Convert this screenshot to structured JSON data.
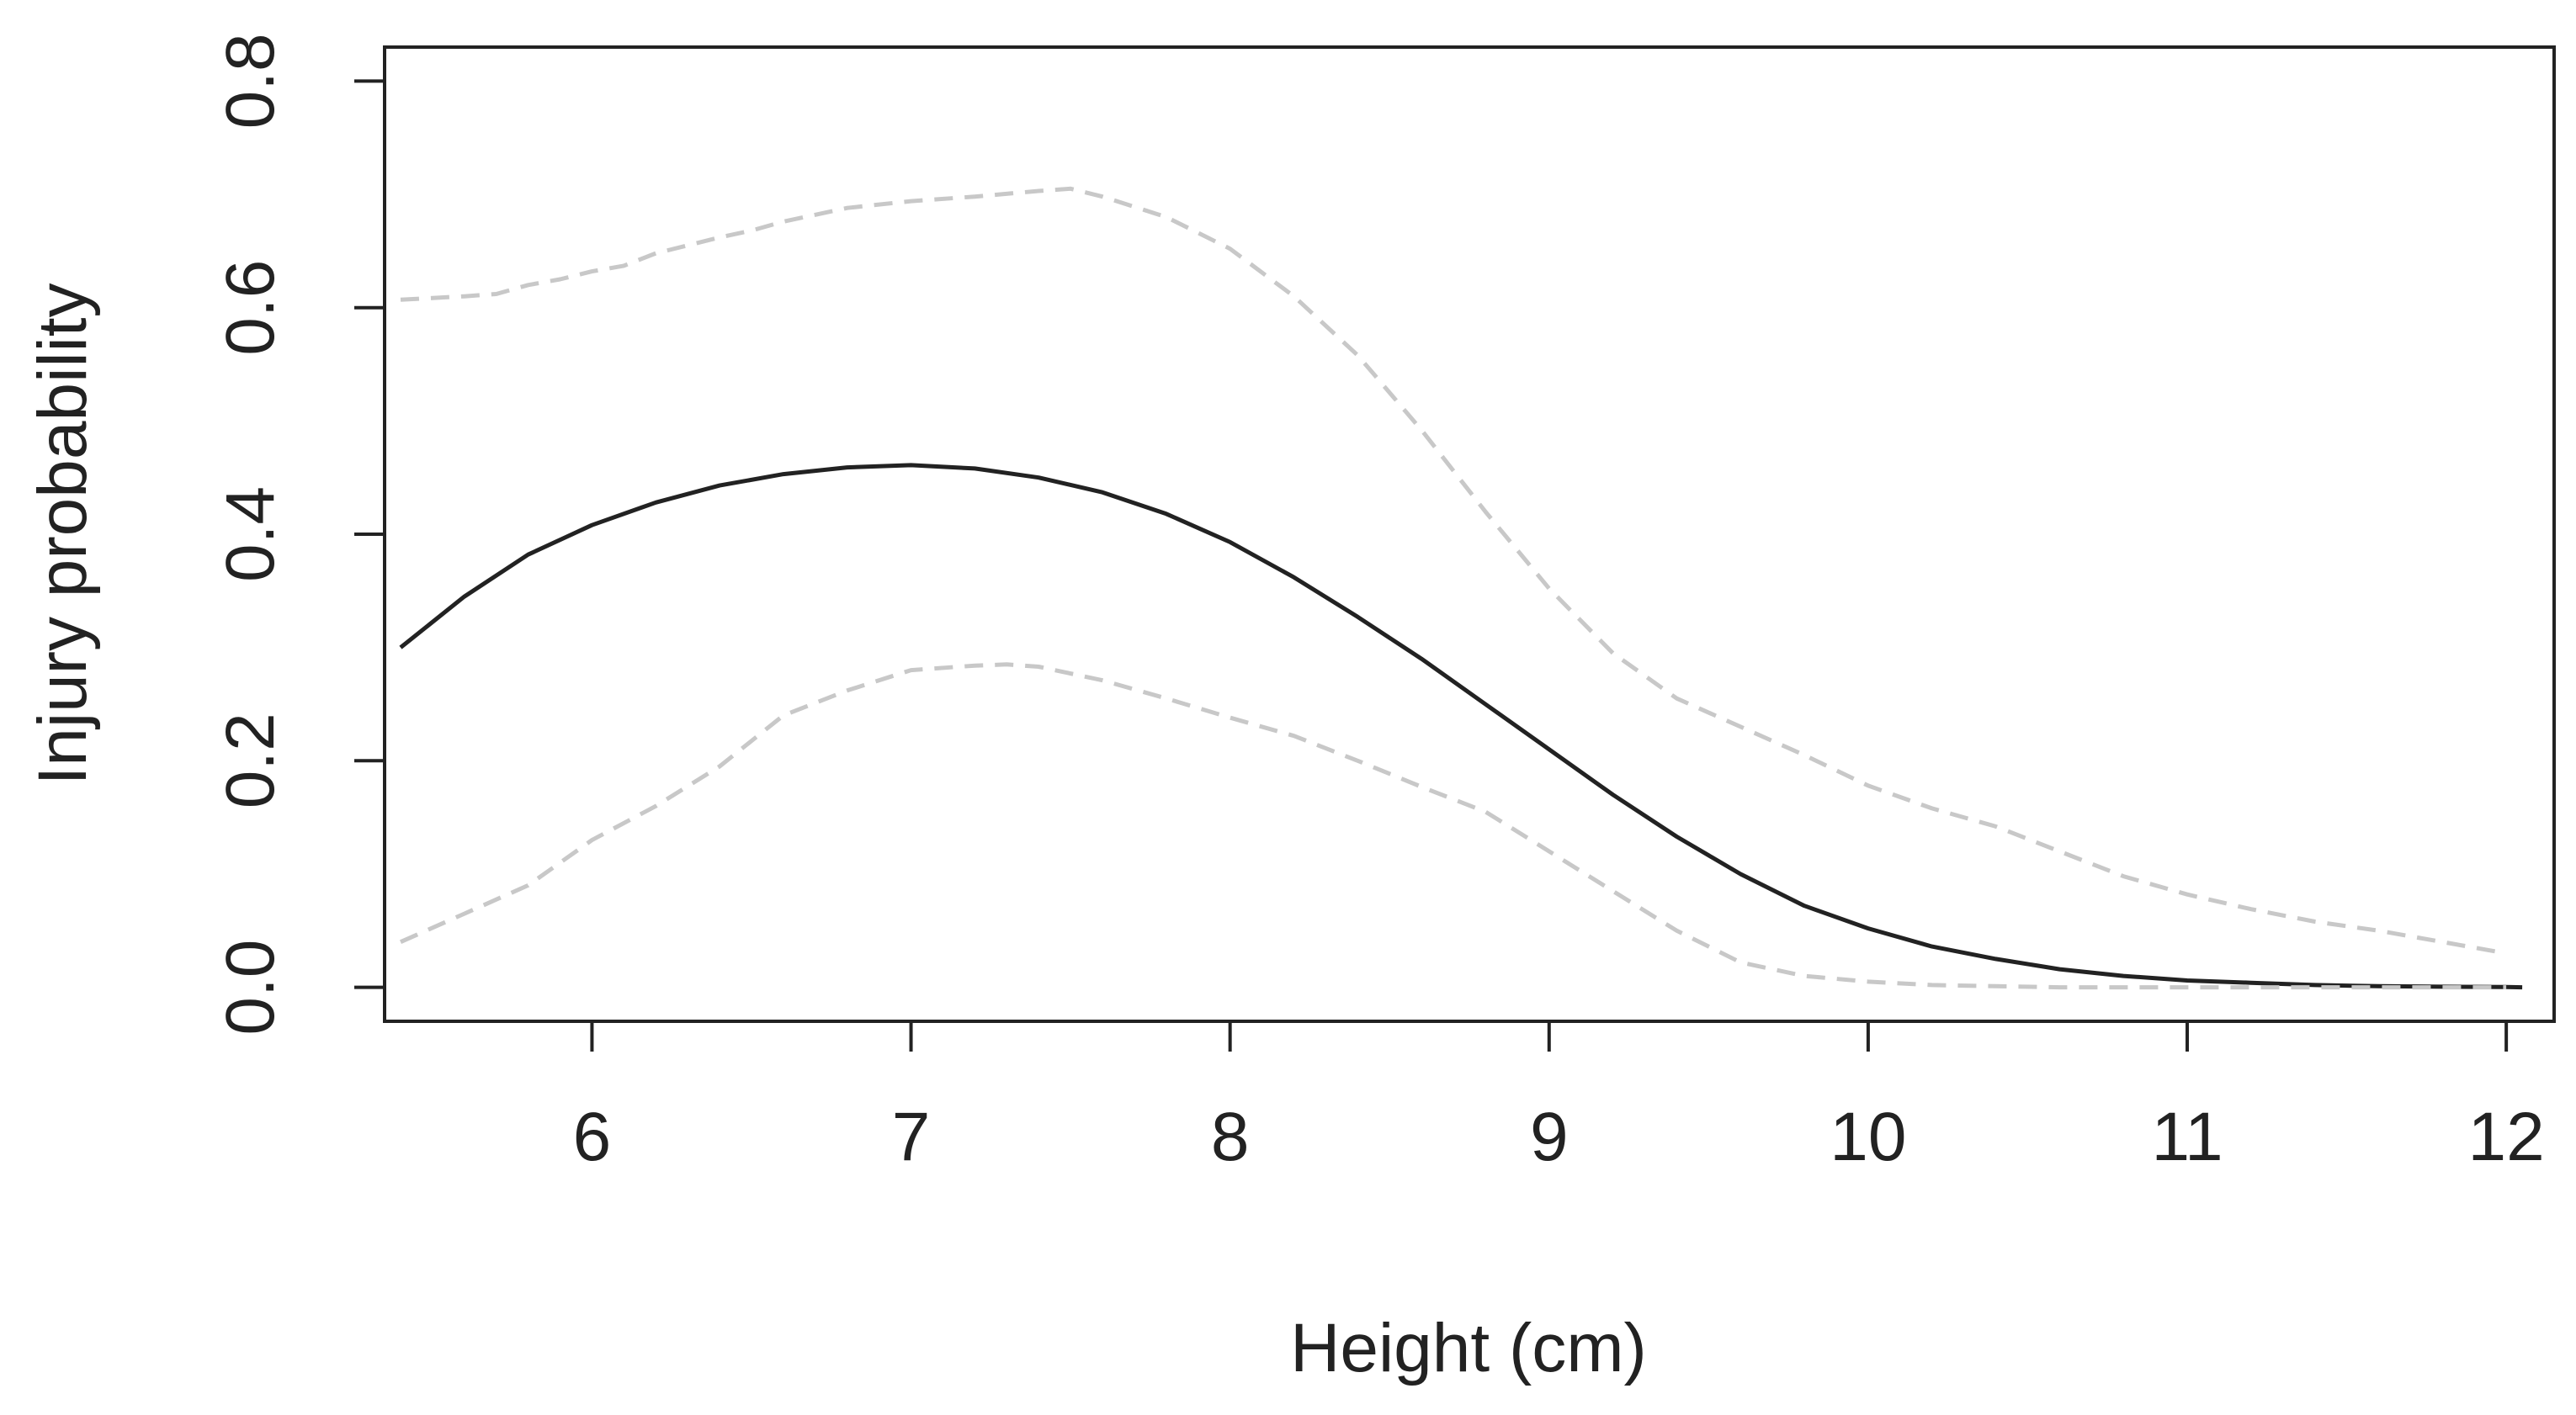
{
  "chart_data": {
    "type": "line",
    "title": "",
    "xlabel": "Height (cm)",
    "ylabel": "Injury probability",
    "xlim": [
      5.35,
      12.15
    ],
    "ylim": [
      -0.03,
      0.83
    ],
    "xticks": [
      6,
      7,
      8,
      9,
      10,
      11,
      12
    ],
    "xtick_labels": [
      "6",
      "7",
      "8",
      "9",
      "10",
      "11",
      "12"
    ],
    "yticks": [
      0.0,
      0.2,
      0.4,
      0.6,
      0.8
    ],
    "ytick_labels": [
      "0.0",
      "0.2",
      "0.4",
      "0.6",
      "0.8"
    ],
    "grid": false,
    "legend": "none",
    "series": [
      {
        "style": "solid",
        "color": "#222222",
        "points": [
          [
            5.4,
            0.3
          ],
          [
            5.6,
            0.345
          ],
          [
            5.8,
            0.382
          ],
          [
            6.0,
            0.408
          ],
          [
            6.2,
            0.428
          ],
          [
            6.4,
            0.443
          ],
          [
            6.6,
            0.453
          ],
          [
            6.8,
            0.459
          ],
          [
            7.0,
            0.461
          ],
          [
            7.2,
            0.458
          ],
          [
            7.4,
            0.45
          ],
          [
            7.6,
            0.437
          ],
          [
            7.8,
            0.418
          ],
          [
            8.0,
            0.393
          ],
          [
            8.2,
            0.362
          ],
          [
            8.4,
            0.327
          ],
          [
            8.6,
            0.29
          ],
          [
            8.8,
            0.25
          ],
          [
            9.0,
            0.21
          ],
          [
            9.2,
            0.17
          ],
          [
            9.4,
            0.133
          ],
          [
            9.6,
            0.1
          ],
          [
            9.8,
            0.072
          ],
          [
            10.0,
            0.052
          ],
          [
            10.2,
            0.036
          ],
          [
            10.4,
            0.025
          ],
          [
            10.6,
            0.016
          ],
          [
            10.8,
            0.01
          ],
          [
            11.0,
            0.006
          ],
          [
            11.2,
            0.004
          ],
          [
            11.4,
            0.002
          ],
          [
            11.6,
            0.001
          ],
          [
            11.8,
            0.0005
          ],
          [
            12.0,
            0.0002
          ],
          [
            12.05,
            0.0
          ]
        ]
      },
      {
        "style": "dashed",
        "color": "#c8c8c8",
        "points": [
          [
            5.4,
            0.607
          ],
          [
            5.6,
            0.61
          ],
          [
            5.7,
            0.612
          ],
          [
            5.8,
            0.62
          ],
          [
            5.9,
            0.625
          ],
          [
            6.0,
            0.632
          ],
          [
            6.1,
            0.637
          ],
          [
            6.2,
            0.648
          ],
          [
            6.4,
            0.662
          ],
          [
            6.5,
            0.668
          ],
          [
            6.6,
            0.676
          ],
          [
            6.8,
            0.688
          ],
          [
            7.0,
            0.694
          ],
          [
            7.2,
            0.698
          ],
          [
            7.4,
            0.703
          ],
          [
            7.5,
            0.705
          ],
          [
            7.6,
            0.698
          ],
          [
            7.8,
            0.68
          ],
          [
            8.0,
            0.652
          ],
          [
            8.2,
            0.61
          ],
          [
            8.4,
            0.558
          ],
          [
            8.6,
            0.492
          ],
          [
            8.8,
            0.42
          ],
          [
            9.0,
            0.352
          ],
          [
            9.2,
            0.295
          ],
          [
            9.4,
            0.255
          ],
          [
            9.6,
            0.23
          ],
          [
            9.8,
            0.205
          ],
          [
            10.0,
            0.178
          ],
          [
            10.2,
            0.158
          ],
          [
            10.4,
            0.142
          ],
          [
            10.6,
            0.12
          ],
          [
            10.8,
            0.098
          ],
          [
            11.0,
            0.082
          ],
          [
            11.2,
            0.069
          ],
          [
            11.4,
            0.058
          ],
          [
            11.6,
            0.05
          ],
          [
            11.8,
            0.04
          ],
          [
            12.0,
            0.03
          ]
        ]
      },
      {
        "style": "dashed",
        "color": "#c8c8c8",
        "points": [
          [
            5.4,
            0.04
          ],
          [
            5.6,
            0.065
          ],
          [
            5.8,
            0.09
          ],
          [
            6.0,
            0.13
          ],
          [
            6.2,
            0.16
          ],
          [
            6.4,
            0.195
          ],
          [
            6.6,
            0.24
          ],
          [
            6.8,
            0.262
          ],
          [
            7.0,
            0.28
          ],
          [
            7.2,
            0.284
          ],
          [
            7.3,
            0.285
          ],
          [
            7.4,
            0.283
          ],
          [
            7.6,
            0.271
          ],
          [
            7.8,
            0.255
          ],
          [
            8.0,
            0.238
          ],
          [
            8.2,
            0.222
          ],
          [
            8.4,
            0.2
          ],
          [
            8.6,
            0.177
          ],
          [
            8.8,
            0.155
          ],
          [
            9.0,
            0.12
          ],
          [
            9.2,
            0.085
          ],
          [
            9.4,
            0.05
          ],
          [
            9.6,
            0.022
          ],
          [
            9.8,
            0.01
          ],
          [
            10.0,
            0.005
          ],
          [
            10.2,
            0.002
          ],
          [
            10.4,
            0.001
          ],
          [
            10.6,
            0.0
          ],
          [
            11.0,
            0.0
          ],
          [
            12.0,
            0.0
          ]
        ]
      }
    ]
  }
}
